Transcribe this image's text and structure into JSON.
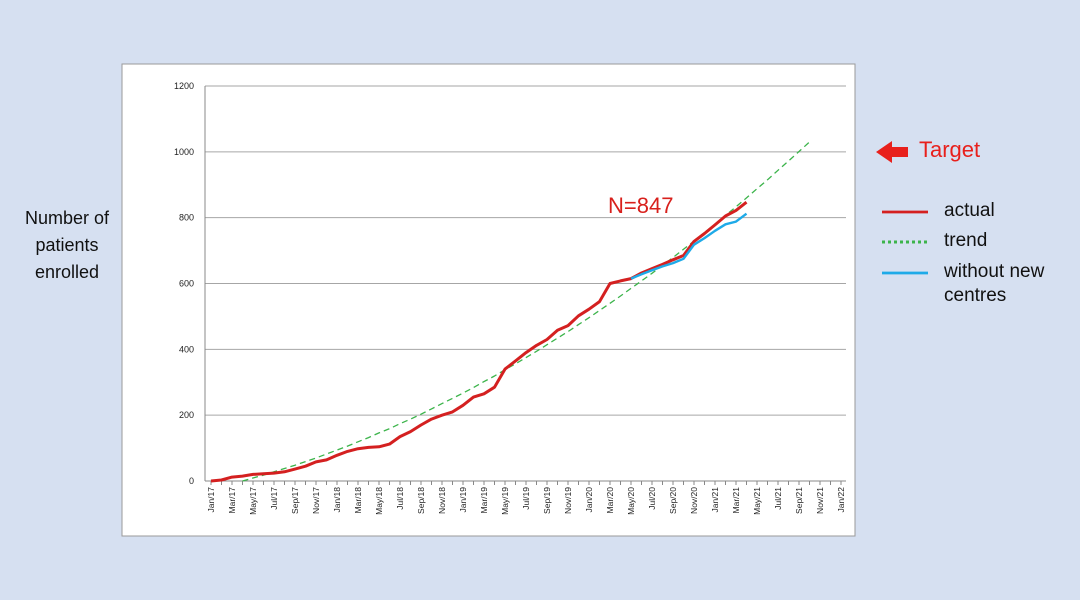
{
  "chart_data": {
    "type": "line",
    "y_label": "Number of patients enrolled",
    "annotations": [
      "N=847",
      "Target"
    ],
    "categories": [
      "Jan/17",
      null,
      "Mar/17",
      null,
      "May/17",
      null,
      "Jul/17",
      null,
      "Sep/17",
      null,
      "Nov/17",
      null,
      "Jan/18",
      null,
      "Mar/18",
      null,
      "May/18",
      null,
      "Jul/18",
      null,
      "Sep/18",
      null,
      "Nov/18",
      null,
      "Jan/19",
      null,
      "Mar/19",
      null,
      "May/19",
      null,
      "Jul/19",
      null,
      "Sep/19",
      null,
      "Nov/19",
      null,
      "Jan/20",
      null,
      "Mar/20",
      null,
      "May/20",
      null,
      "Jul/20",
      null,
      "Sep/20",
      null,
      "Nov/20",
      null,
      "Jan/21",
      null,
      "Mar/21",
      null,
      "May/21",
      null,
      "Jul/21",
      null,
      "Sep/21",
      null,
      "Nov/21",
      null,
      "Jan/22"
    ],
    "series": [
      {
        "name": "actual",
        "color": "#d42020",
        "style": "solid",
        "values": [
          0,
          3,
          12,
          15,
          20,
          22,
          24,
          28,
          36,
          45,
          58,
          64,
          78,
          90,
          98,
          102,
          104,
          112,
          135,
          150,
          170,
          188,
          200,
          210,
          230,
          255,
          265,
          285,
          340,
          365,
          390,
          412,
          430,
          458,
          472,
          502,
          522,
          545,
          600,
          608,
          615,
          632,
          645,
          658,
          672,
          685,
          728,
          752,
          778,
          805,
          822,
          847,
          null,
          null,
          null,
          null,
          null,
          null,
          null,
          null,
          null
        ]
      },
      {
        "name": "trend",
        "color": "#3cb44b",
        "style": "dashed",
        "values": [
          null,
          null,
          null,
          0,
          9,
          18,
          28,
          38,
          48,
          59,
          70,
          82,
          94,
          106,
          119,
          132,
          146,
          159,
          174,
          188,
          203,
          219,
          235,
          251,
          267,
          284,
          302,
          319,
          338,
          356,
          375,
          394,
          414,
          434,
          454,
          475,
          496,
          518,
          540,
          562,
          585,
          608,
          631,
          655,
          679,
          704,
          729,
          755,
          780,
          807,
          833,
          860,
          888,
          915,
          944,
          972,
          1001,
          1030,
          null,
          null,
          null
        ]
      },
      {
        "name": "without new centres",
        "color": "#1eaae8",
        "style": "solid",
        "values": [
          null,
          null,
          null,
          null,
          null,
          null,
          null,
          null,
          null,
          null,
          null,
          null,
          null,
          null,
          null,
          null,
          null,
          null,
          null,
          null,
          null,
          null,
          null,
          null,
          null,
          null,
          null,
          null,
          null,
          null,
          null,
          null,
          null,
          null,
          null,
          null,
          null,
          null,
          null,
          null,
          615,
          628,
          640,
          652,
          662,
          675,
          718,
          738,
          760,
          780,
          788,
          812,
          null,
          null,
          null,
          null,
          null,
          null,
          null,
          null,
          null
        ]
      }
    ],
    "ylim": [
      0,
      1200
    ],
    "yticks": [
      0,
      200,
      400,
      600,
      800,
      1000,
      1200
    ],
    "grid": true
  }
}
